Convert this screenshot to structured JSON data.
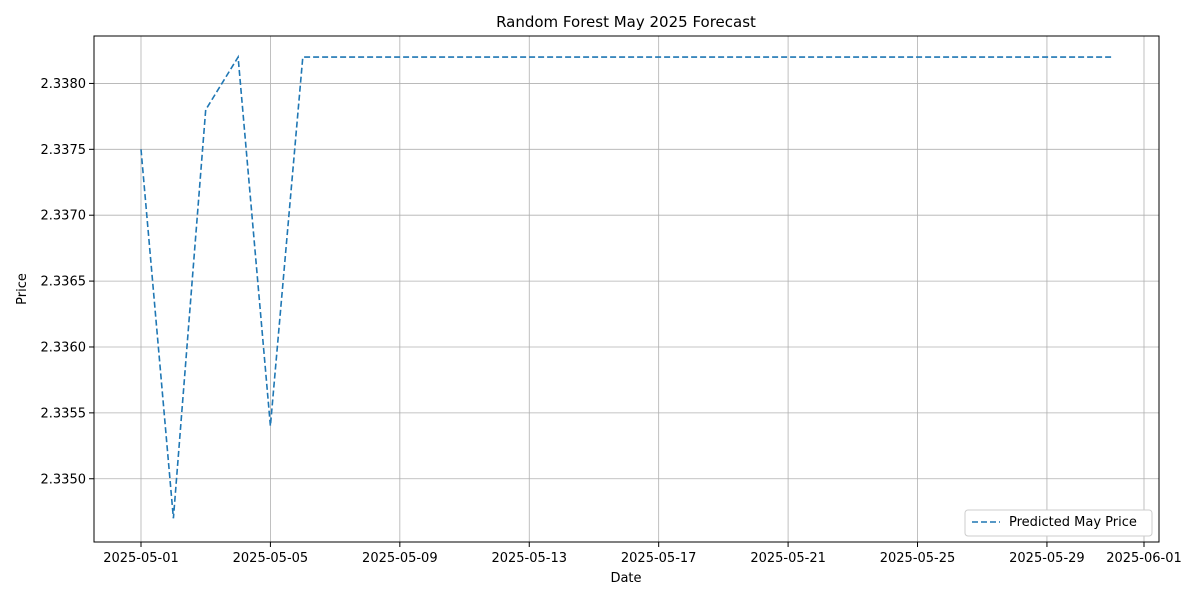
{
  "chart_data": {
    "type": "line",
    "title": "Random Forest May 2025 Forecast",
    "xlabel": "Date",
    "ylabel": "Price",
    "x_ticks": [
      "2025-05-01",
      "2025-05-05",
      "2025-05-09",
      "2025-05-13",
      "2025-05-17",
      "2025-05-21",
      "2025-05-25",
      "2025-05-29",
      "2025-06-01"
    ],
    "y_ticks": [
      "2.3350",
      "2.3355",
      "2.3360",
      "2.3365",
      "2.3370",
      "2.3375",
      "2.3380"
    ],
    "xlim": [
      "2025-04-30",
      "2025-06-01"
    ],
    "ylim": [
      2.33452,
      2.33836
    ],
    "grid": true,
    "legend_position": "lower-right",
    "series": [
      {
        "name": "Predicted May Price",
        "color": "#1f77b4",
        "line_style": "dashed",
        "x": [
          "2025-05-01",
          "2025-05-02",
          "2025-05-03",
          "2025-05-04",
          "2025-05-05",
          "2025-05-06",
          "2025-05-07",
          "2025-05-08",
          "2025-05-09",
          "2025-05-10",
          "2025-05-11",
          "2025-05-12",
          "2025-05-13",
          "2025-05-14",
          "2025-05-15",
          "2025-05-16",
          "2025-05-17",
          "2025-05-18",
          "2025-05-19",
          "2025-05-20",
          "2025-05-21",
          "2025-05-22",
          "2025-05-23",
          "2025-05-24",
          "2025-05-25",
          "2025-05-26",
          "2025-05-27",
          "2025-05-28",
          "2025-05-29",
          "2025-05-30",
          "2025-05-31"
        ],
        "y": [
          2.3375,
          2.3347,
          2.3378,
          2.3382,
          2.3354,
          2.3382,
          2.3382,
          2.3382,
          2.3382,
          2.3382,
          2.3382,
          2.3382,
          2.3382,
          2.3382,
          2.3382,
          2.3382,
          2.3382,
          2.3382,
          2.3382,
          2.3382,
          2.3382,
          2.3382,
          2.3382,
          2.3382,
          2.3382,
          2.3382,
          2.3382,
          2.3382,
          2.3382,
          2.3382,
          2.3382
        ]
      }
    ]
  }
}
